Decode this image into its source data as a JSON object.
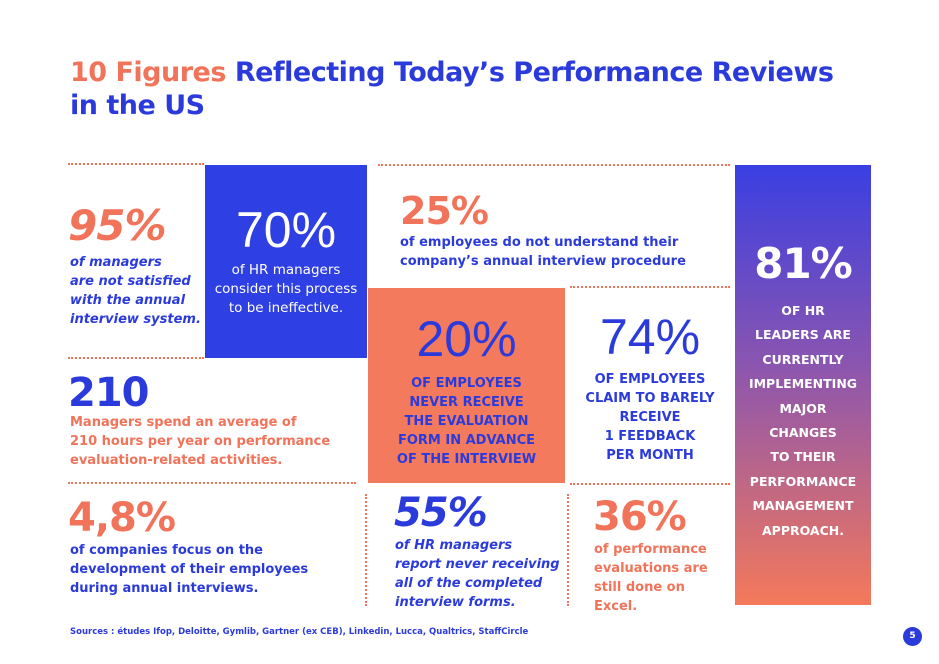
{
  "title": {
    "highlight": "10 Figures",
    "rest_line1": "Reflecting Today’s Performance Reviews",
    "line2": "in the US"
  },
  "stats": {
    "s95": {
      "value": "95%",
      "text": [
        "of managers",
        "are not satisfied",
        "with the annual",
        "interview system."
      ]
    },
    "s70": {
      "value": "70%",
      "text": [
        "of HR managers",
        "consider this process",
        "to be ineffective."
      ]
    },
    "s25": {
      "value": "25%",
      "text": [
        "of employees do not understand their",
        "company’s annual interview procedure"
      ]
    },
    "s81": {
      "value": "81%",
      "text": [
        "OF HR",
        "LEADERS ARE",
        "CURRENTLY",
        "IMPLEMENTING",
        "MAJOR",
        "CHANGES",
        "TO THEIR",
        "PERFORMANCE",
        "MANAGEMENT",
        "APPROACH."
      ]
    },
    "s20": {
      "value": "20%",
      "text": [
        "OF EMPLOYEES",
        "NEVER RECEIVE",
        "THE EVALUATION",
        "FORM IN ADVANCE",
        "OF THE INTERVIEW"
      ]
    },
    "s74": {
      "value": "74%",
      "text": [
        "OF EMPLOYEES",
        "CLAIM TO BARELY",
        "RECEIVE",
        "1 FEEDBACK",
        "PER MONTH"
      ]
    },
    "s210": {
      "value": "210",
      "text": [
        "Managers spend an average of",
        "210 hours per year on performance",
        "evaluation-related activities."
      ]
    },
    "s48": {
      "value": "4,8%",
      "text": [
        "of companies focus on the",
        "development of their employees",
        "during annual interviews."
      ]
    },
    "s55": {
      "value": "55%",
      "text": [
        "of HR managers",
        "report never receiving",
        "all of the completed",
        "interview forms."
      ]
    },
    "s36": {
      "value": "36%",
      "text": [
        "of performance",
        "evaluations are",
        "still done on",
        "Excel."
      ]
    }
  },
  "footer": {
    "sources": "Sources : études Ifop, Deloitte, Gymlib, Gartner (ex CEB), Linkedin, Lucca, Qualtrics, StaffCircle",
    "page_number": "5"
  },
  "colors": {
    "orange": "#F0735A",
    "blue": "#2B3BDB"
  }
}
